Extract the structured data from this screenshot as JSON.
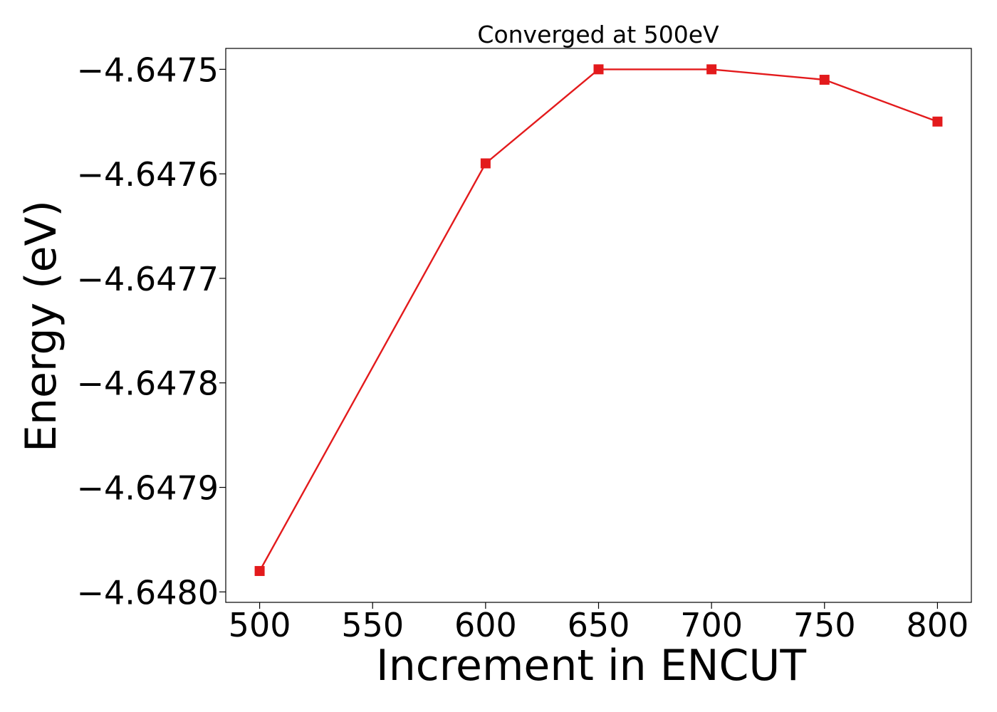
{
  "chart_data": {
    "type": "line",
    "title": "Converged at 500eV",
    "xlabel": "Increment in ENCUT",
    "ylabel": "Energy (eV)",
    "x": [
      500,
      600,
      650,
      700,
      750,
      800
    ],
    "series": [
      {
        "values": [
          -4.64798,
          -4.64759,
          -4.6475,
          -4.6475,
          -4.64751,
          -4.64755
        ],
        "color": "#e31a1c",
        "marker": "square"
      }
    ],
    "xlim": [
      485,
      815
    ],
    "ylim": [
      -4.64801,
      -4.64748
    ],
    "xticks": [
      500,
      550,
      600,
      650,
      700,
      750,
      800
    ],
    "xtick_labels": [
      "500",
      "550",
      "600",
      "650",
      "700",
      "750",
      "800"
    ],
    "yticks": [
      -4.648,
      -4.6479,
      -4.6478,
      -4.6477,
      -4.6476,
      -4.6475
    ],
    "ytick_labels": [
      "−4.6480",
      "−4.6479",
      "−4.6478",
      "−4.6477",
      "−4.6476",
      "−4.6475"
    ],
    "grid": false,
    "legend": "none"
  }
}
